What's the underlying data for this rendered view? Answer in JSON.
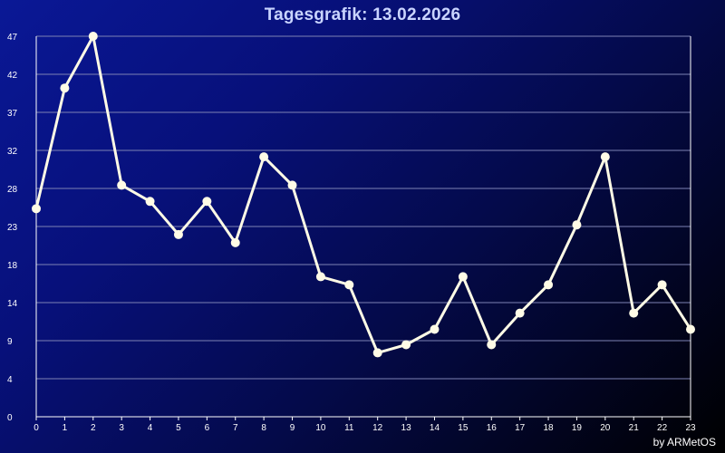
{
  "title": "Tagesgrafik: 13.02.2026",
  "credit": "by ARMetOS",
  "colors": {
    "line": "#fffbe6",
    "grid": "#7d82b4",
    "axis": "#ffffff",
    "bg_start": "#0a1896",
    "bg_end": "#000000"
  },
  "chart_data": {
    "type": "line",
    "title": "Tagesgrafik: 13.02.2026",
    "xlabel": "",
    "ylabel": "",
    "x": [
      0,
      1,
      2,
      3,
      4,
      5,
      6,
      7,
      8,
      9,
      10,
      11,
      12,
      13,
      14,
      15,
      16,
      17,
      18,
      19,
      20,
      21,
      22,
      23
    ],
    "x_ticks": [
      "0",
      "1",
      "2",
      "3",
      "4",
      "5",
      "6",
      "7",
      "8",
      "9",
      "10",
      "11",
      "12",
      "13",
      "14",
      "15",
      "16",
      "17",
      "18",
      "19",
      "20",
      "21",
      "22",
      "23"
    ],
    "y_ticks": [
      "0",
      "4",
      "9",
      "14",
      "18",
      "23",
      "28",
      "32",
      "37",
      "42",
      "47"
    ],
    "ylim": [
      0,
      47
    ],
    "grid": true,
    "legend": "none",
    "series": [
      {
        "values": [
          25.7,
          40.6,
          47,
          28.6,
          26.6,
          22.5,
          26.6,
          21.5,
          32.1,
          28.6,
          17.3,
          16.3,
          7.9,
          8.9,
          10.8,
          17.3,
          8.9,
          12.8,
          16.3,
          23.7,
          32.1,
          12.8,
          16.3,
          10.8
        ]
      }
    ]
  }
}
